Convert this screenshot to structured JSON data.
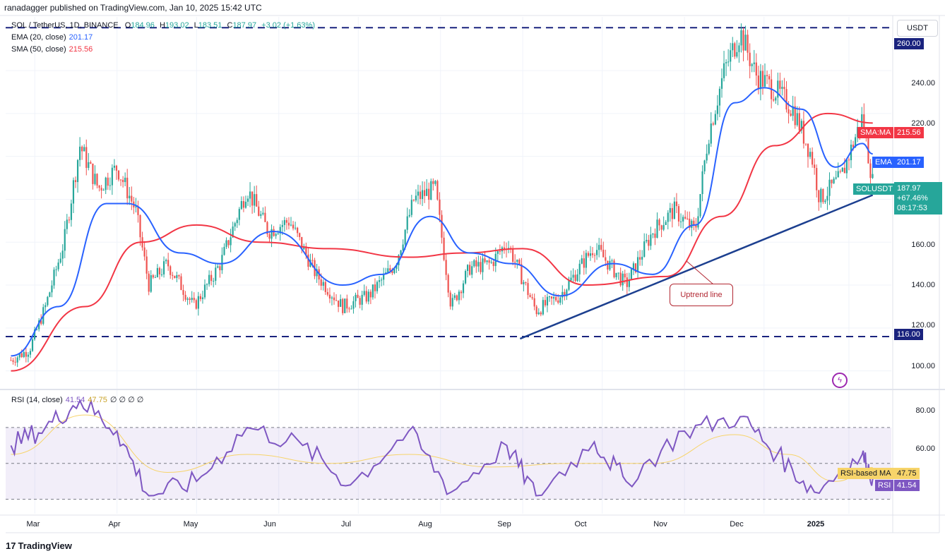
{
  "header": {
    "attribution": "ranadagger published on TradingView.com, Jan 10, 2025 15:42 UTC"
  },
  "symbol_line": {
    "symbol": "SOL / TetherUS, 1D, BINANCE",
    "o_label": "O",
    "o": "184.96",
    "h_label": "H",
    "h": "193.02",
    "l_label": "L",
    "l": "183.51",
    "c_label": "C",
    "c": "187.97",
    "change": "+3.02 (+1.63%)"
  },
  "indicators": {
    "ema": {
      "label": "EMA (20, close)",
      "value": "201.17"
    },
    "sma": {
      "label": "SMA (50, close)",
      "value": "215.56"
    },
    "rsi": {
      "label": "RSI (14, close)",
      "value": "41.54",
      "ma_value": "47.75",
      "extra": "∅ ∅ ∅ ∅"
    }
  },
  "price_axis": {
    "currency_button": "USDT",
    "ticks": [
      "260.00",
      "240.00",
      "220.00",
      "160.00",
      "140.00",
      "120.00",
      "116.00",
      "100.00"
    ]
  },
  "rsi_axis": {
    "ticks": [
      "80.00",
      "60.00"
    ]
  },
  "price_tags": {
    "sma_label": "SMA:MA",
    "sma_value": "215.56",
    "ema_label": "EMA",
    "ema_value": "201.17",
    "symbol_label": "SOLUSDT",
    "symbol_value": "187.97",
    "symbol_change": "+67.46%",
    "countdown": "08:17:53",
    "rsi_ma_label": "RSI-based MA",
    "rsi_ma_value": "47.75",
    "rsi_label": "RSI",
    "rsi_value": "41.54"
  },
  "annotations": {
    "trendline_label": "Uptrend line"
  },
  "time_axis": [
    "Mar",
    "Apr",
    "May",
    "Jun",
    "Jul",
    "Aug",
    "Sep",
    "Oct",
    "Nov",
    "Dec",
    "2025"
  ],
  "footer": {
    "brand": "TradingView"
  },
  "colors": {
    "up": "#26a69a",
    "down": "#ef5350",
    "ema": "#2962ff",
    "sma": "#f23645",
    "rsi": "#7e57c2",
    "rsi_ma": "#f7d46a",
    "level": "#1a237e",
    "trend": "#1c3f8f"
  },
  "chart_data": {
    "type": "candlestick",
    "title": "SOL / TetherUS, 1D, BINANCE",
    "x_axis": [
      "Mar",
      "Apr",
      "May",
      "Jun",
      "Jul",
      "Aug",
      "Sep",
      "Oct",
      "Nov",
      "Dec",
      "2025"
    ],
    "ylim": [
      92,
      265
    ],
    "horizontal_levels": [
      260,
      116
    ],
    "trendline": {
      "label": "Uptrend line",
      "from": [
        "Aug 31",
        115
      ],
      "to": [
        "Jan 10",
        182
      ]
    },
    "close_series_approx": [
      {
        "date": "Feb 20",
        "close": 105
      },
      {
        "date": "Feb 27",
        "close": 110
      },
      {
        "date": "Mar 5",
        "close": 130
      },
      {
        "date": "Mar 12",
        "close": 160
      },
      {
        "date": "Mar 18",
        "close": 205
      },
      {
        "date": "Mar 25",
        "close": 185
      },
      {
        "date": "Apr 1",
        "close": 195
      },
      {
        "date": "Apr 8",
        "close": 175
      },
      {
        "date": "Apr 13",
        "close": 140
      },
      {
        "date": "Apr 20",
        "close": 150
      },
      {
        "date": "Apr 30",
        "close": 130
      },
      {
        "date": "May 10",
        "close": 150
      },
      {
        "date": "May 20",
        "close": 185
      },
      {
        "date": "May 28",
        "close": 165
      },
      {
        "date": "Jun 5",
        "close": 170
      },
      {
        "date": "Jun 15",
        "close": 145
      },
      {
        "date": "Jun 25",
        "close": 130
      },
      {
        "date": "Jul 5",
        "close": 135
      },
      {
        "date": "Jul 15",
        "close": 150
      },
      {
        "date": "Jul 22",
        "close": 180
      },
      {
        "date": "Jul 30",
        "close": 185
      },
      {
        "date": "Aug 5",
        "close": 130
      },
      {
        "date": "Aug 12",
        "close": 148
      },
      {
        "date": "Aug 20",
        "close": 150
      },
      {
        "date": "Aug 26",
        "close": 160
      },
      {
        "date": "Sep 6",
        "close": 128
      },
      {
        "date": "Sep 15",
        "close": 135
      },
      {
        "date": "Sep 28",
        "close": 158
      },
      {
        "date": "Oct 10",
        "close": 140
      },
      {
        "date": "Oct 20",
        "close": 165
      },
      {
        "date": "Oct 28",
        "close": 175
      },
      {
        "date": "Nov 5",
        "close": 165
      },
      {
        "date": "Nov 10",
        "close": 210
      },
      {
        "date": "Nov 16",
        "close": 240
      },
      {
        "date": "Nov 22",
        "close": 258
      },
      {
        "date": "Nov 28",
        "close": 238
      },
      {
        "date": "Dec 6",
        "close": 230
      },
      {
        "date": "Dec 12",
        "close": 222
      },
      {
        "date": "Dec 19",
        "close": 200
      },
      {
        "date": "Dec 22",
        "close": 180
      },
      {
        "date": "Dec 30",
        "close": 190
      },
      {
        "date": "Jan 6",
        "close": 218
      },
      {
        "date": "Jan 10",
        "close": 187.97
      }
    ],
    "ema20_approx": [
      {
        "date": "Feb 20",
        "value": 107
      },
      {
        "date": "Mar 10",
        "value": 130
      },
      {
        "date": "Mar 28",
        "value": 178
      },
      {
        "date": "Apr 5",
        "value": 178
      },
      {
        "date": "Apr 25",
        "value": 155
      },
      {
        "date": "May 10",
        "value": 150
      },
      {
        "date": "May 30",
        "value": 165
      },
      {
        "date": "Jun 25",
        "value": 140
      },
      {
        "date": "Jul 10",
        "value": 145
      },
      {
        "date": "Jul 28",
        "value": 172
      },
      {
        "date": "Aug 12",
        "value": 155
      },
      {
        "date": "Aug 28",
        "value": 150
      },
      {
        "date": "Sep 15",
        "value": 135
      },
      {
        "date": "Oct 5",
        "value": 150
      },
      {
        "date": "Oct 20",
        "value": 145
      },
      {
        "date": "Nov 5",
        "value": 168
      },
      {
        "date": "Nov 20",
        "value": 225
      },
      {
        "date": "Dec 1",
        "value": 232
      },
      {
        "date": "Dec 15",
        "value": 222
      },
      {
        "date": "Dec 28",
        "value": 195
      },
      {
        "date": "Jan 6",
        "value": 206
      },
      {
        "date": "Jan 10",
        "value": 201.17
      }
    ],
    "sma50_approx": [
      {
        "date": "Feb 20",
        "value": 100
      },
      {
        "date": "Mar 20",
        "value": 130
      },
      {
        "date": "Apr 10",
        "value": 160
      },
      {
        "date": "May 1",
        "value": 168
      },
      {
        "date": "May 25",
        "value": 160
      },
      {
        "date": "Jun 20",
        "value": 157
      },
      {
        "date": "Jul 20",
        "value": 153
      },
      {
        "date": "Aug 10",
        "value": 155
      },
      {
        "date": "Sep 1",
        "value": 157
      },
      {
        "date": "Sep 25",
        "value": 140
      },
      {
        "date": "Oct 25",
        "value": 144
      },
      {
        "date": "Nov 15",
        "value": 172
      },
      {
        "date": "Dec 5",
        "value": 205
      },
      {
        "date": "Dec 25",
        "value": 220
      },
      {
        "date": "Jan 10",
        "value": 215.56
      }
    ],
    "rsi14_approx": [
      {
        "date": "Feb 20",
        "value": 60
      },
      {
        "date": "Mar 5",
        "value": 70
      },
      {
        "date": "Mar 18",
        "value": 85
      },
      {
        "date": "Apr 1",
        "value": 68
      },
      {
        "date": "Apr 13",
        "value": 32
      },
      {
        "date": "May 1",
        "value": 40
      },
      {
        "date": "May 20",
        "value": 70
      },
      {
        "date": "Jun 10",
        "value": 60
      },
      {
        "date": "Jun 28",
        "value": 38
      },
      {
        "date": "Jul 20",
        "value": 68
      },
      {
        "date": "Aug 5",
        "value": 34
      },
      {
        "date": "Aug 26",
        "value": 60
      },
      {
        "date": "Sep 6",
        "value": 32
      },
      {
        "date": "Sep 28",
        "value": 62
      },
      {
        "date": "Oct 10",
        "value": 40
      },
      {
        "date": "Nov 1",
        "value": 68
      },
      {
        "date": "Nov 22",
        "value": 76
      },
      {
        "date": "Dec 6",
        "value": 55
      },
      {
        "date": "Dec 20",
        "value": 34
      },
      {
        "date": "Jan 6",
        "value": 55
      },
      {
        "date": "Jan 10",
        "value": 41.54
      }
    ],
    "rsi_ma_approx": [
      {
        "date": "Feb 20",
        "value": 55
      },
      {
        "date": "Mar 20",
        "value": 77
      },
      {
        "date": "Apr 20",
        "value": 45
      },
      {
        "date": "May 20",
        "value": 55
      },
      {
        "date": "Jun 20",
        "value": 50
      },
      {
        "date": "Jul 20",
        "value": 55
      },
      {
        "date": "Aug 20",
        "value": 48
      },
      {
        "date": "Sep 20",
        "value": 50
      },
      {
        "date": "Oct 20",
        "value": 50
      },
      {
        "date": "Nov 20",
        "value": 66
      },
      {
        "date": "Dec 10",
        "value": 55
      },
      {
        "date": "Dec 28",
        "value": 40
      },
      {
        "date": "Jan 10",
        "value": 47.75
      }
    ],
    "rsi_levels": [
      70,
      50,
      30
    ]
  }
}
